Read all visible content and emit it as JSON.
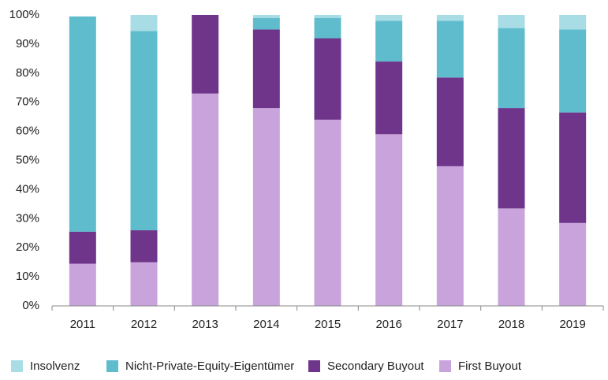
{
  "chart_data": {
    "type": "stacked_bar",
    "categories": [
      "2011",
      "2012",
      "2013",
      "2014",
      "2015",
      "2016",
      "2017",
      "2018",
      "2019"
    ],
    "series": [
      {
        "name": "Insolvenz",
        "color": "#a8dde6",
        "values": [
          0,
          5.5,
          0,
          1,
          1,
          2,
          2,
          4.5,
          5
        ]
      },
      {
        "name": "Nicht-Private-Equity-Eigentümer",
        "color": "#5fbccc",
        "values": [
          74,
          68.5,
          0,
          4,
          7,
          14,
          19.5,
          27.5,
          28.5
        ]
      },
      {
        "name": "Secondary Buyout",
        "color": "#6e358b",
        "values": [
          11,
          11,
          27,
          27,
          28,
          25,
          30.5,
          34.5,
          38
        ]
      },
      {
        "name": "First Buyout",
        "color": "#c9a3dc",
        "values": [
          14.5,
          15,
          73,
          68,
          64,
          59,
          48,
          33.5,
          28.5
        ]
      }
    ],
    "ylim": [
      0,
      100
    ],
    "yticks": [
      {
        "value": 0,
        "label": "0%"
      },
      {
        "value": 10,
        "label": "10%"
      },
      {
        "value": 20,
        "label": "20%"
      },
      {
        "value": 30,
        "label": "30%"
      },
      {
        "value": 40,
        "label": "40%"
      },
      {
        "value": 50,
        "label": "50%"
      },
      {
        "value": 60,
        "label": "60%"
      },
      {
        "value": 70,
        "label": "70%"
      },
      {
        "value": 80,
        "label": "80%"
      },
      {
        "value": 90,
        "label": "90%"
      },
      {
        "value": 100,
        "label": "100%"
      }
    ],
    "legend": "bottom"
  }
}
